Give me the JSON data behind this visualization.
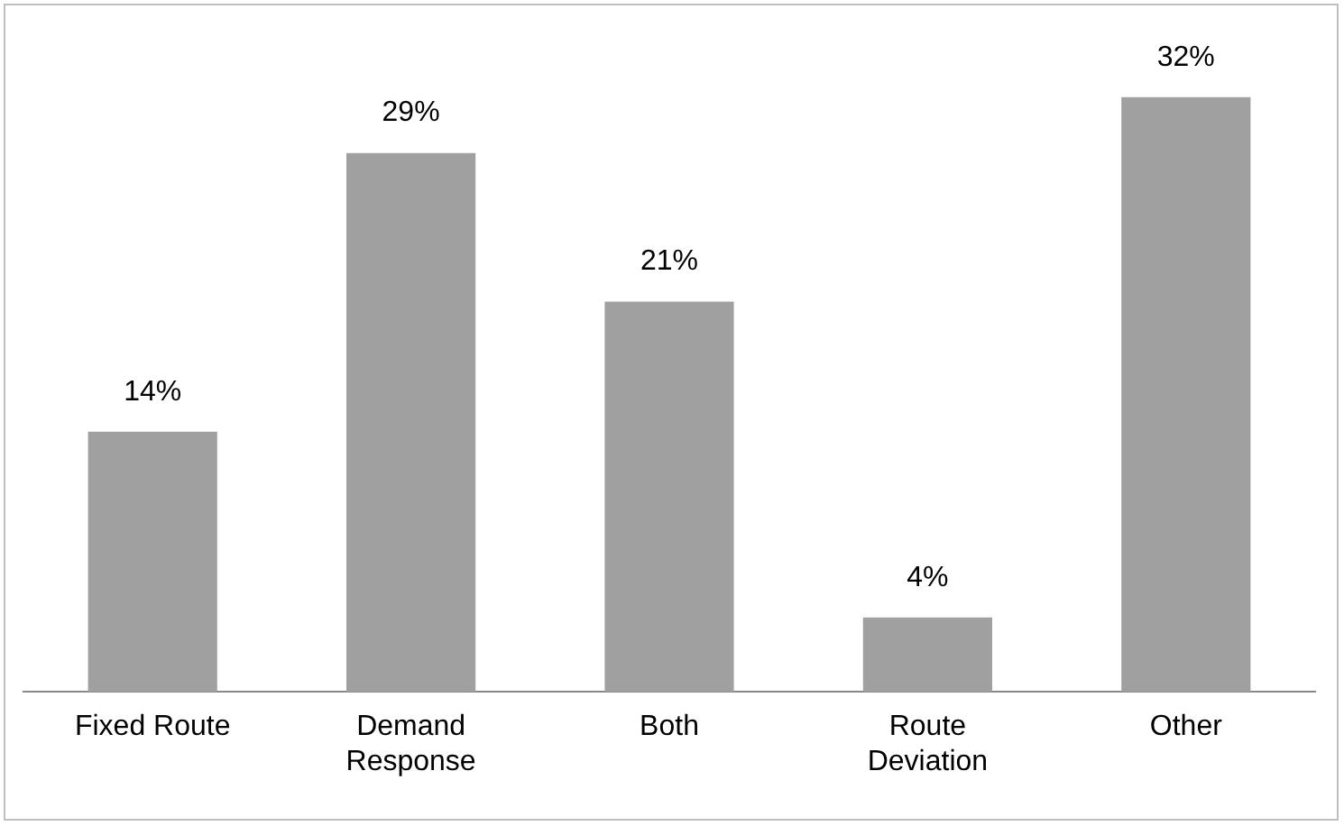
{
  "chart_data": {
    "type": "bar",
    "categories": [
      "Fixed Route",
      "Demand Response",
      "Both",
      "Route Deviation",
      "Other"
    ],
    "values": [
      14,
      29,
      21,
      4,
      32
    ],
    "color": "#a0a0a0",
    "value_labels": [
      "14%",
      "29%",
      "21%",
      "4%",
      "32%"
    ],
    "grid": false,
    "legend": false
  }
}
